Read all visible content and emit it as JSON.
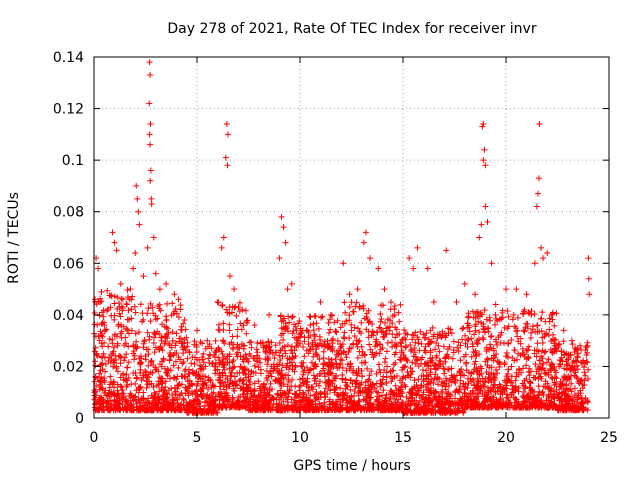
{
  "chart_data": {
    "type": "scatter",
    "title": "Day 278 of 2021, Rate Of TEC Index for receiver invr",
    "xlabel": "GPS time / hours",
    "ylabel": "ROTI / TECUs",
    "xlim": [
      0,
      25
    ],
    "ylim": [
      0,
      0.14
    ],
    "xticks": [
      0,
      5,
      10,
      15,
      20,
      25
    ],
    "xtick_labels": [
      "0",
      "5",
      "10",
      "15",
      "20",
      "25"
    ],
    "yticks": [
      0,
      0.02,
      0.04,
      0.06,
      0.08,
      0.1,
      0.12,
      0.14
    ],
    "ytick_labels": [
      "0",
      "0.02",
      "0.04",
      "0.06",
      "0.08",
      "0.1",
      "0.12",
      "0.14"
    ],
    "grid": true,
    "marker": "+",
    "color": "#ff0000",
    "series": [
      {
        "name": "ROTI",
        "points": [
          [
            0.1,
            0.062
          ],
          [
            0.2,
            0.058
          ],
          [
            0.3,
            0.045
          ],
          [
            0.5,
            0.036
          ],
          [
            0.9,
            0.072
          ],
          [
            1.0,
            0.068
          ],
          [
            1.1,
            0.065
          ],
          [
            1.3,
            0.052
          ],
          [
            1.6,
            0.044
          ],
          [
            1.9,
            0.058
          ],
          [
            2.0,
            0.064
          ],
          [
            2.05,
            0.09
          ],
          [
            2.1,
            0.085
          ],
          [
            2.15,
            0.08
          ],
          [
            2.2,
            0.075
          ],
          [
            2.4,
            0.055
          ],
          [
            2.6,
            0.066
          ],
          [
            2.7,
            0.138
          ],
          [
            2.72,
            0.133
          ],
          [
            2.68,
            0.122
          ],
          [
            2.74,
            0.114
          ],
          [
            2.7,
            0.11
          ],
          [
            2.72,
            0.106
          ],
          [
            2.76,
            0.096
          ],
          [
            2.73,
            0.092
          ],
          [
            2.78,
            0.085
          ],
          [
            2.8,
            0.083
          ],
          [
            2.9,
            0.07
          ],
          [
            3.0,
            0.056
          ],
          [
            3.2,
            0.05
          ],
          [
            3.5,
            0.052
          ],
          [
            3.9,
            0.048
          ],
          [
            4.1,
            0.046
          ],
          [
            4.4,
            0.038
          ],
          [
            5.0,
            0.034
          ],
          [
            5.5,
            0.03
          ],
          [
            6.0,
            0.045
          ],
          [
            6.2,
            0.066
          ],
          [
            6.3,
            0.07
          ],
          [
            6.45,
            0.114
          ],
          [
            6.5,
            0.11
          ],
          [
            6.4,
            0.101
          ],
          [
            6.48,
            0.098
          ],
          [
            6.6,
            0.055
          ],
          [
            6.8,
            0.05
          ],
          [
            7.2,
            0.042
          ],
          [
            7.8,
            0.036
          ],
          [
            8.5,
            0.04
          ],
          [
            9.0,
            0.062
          ],
          [
            9.1,
            0.078
          ],
          [
            9.2,
            0.074
          ],
          [
            9.3,
            0.068
          ],
          [
            9.4,
            0.05
          ],
          [
            9.6,
            0.052
          ],
          [
            9.9,
            0.03
          ],
          [
            10.5,
            0.036
          ],
          [
            11.0,
            0.045
          ],
          [
            11.5,
            0.04
          ],
          [
            12.1,
            0.06
          ],
          [
            12.4,
            0.048
          ],
          [
            12.8,
            0.05
          ],
          [
            13.1,
            0.068
          ],
          [
            13.2,
            0.072
          ],
          [
            13.4,
            0.062
          ],
          [
            13.8,
            0.058
          ],
          [
            14.1,
            0.05
          ],
          [
            14.6,
            0.04
          ],
          [
            15.3,
            0.062
          ],
          [
            15.5,
            0.058
          ],
          [
            15.7,
            0.066
          ],
          [
            16.2,
            0.058
          ],
          [
            16.5,
            0.045
          ],
          [
            16.8,
            0.032
          ],
          [
            17.1,
            0.065
          ],
          [
            17.6,
            0.045
          ],
          [
            18.0,
            0.052
          ],
          [
            18.5,
            0.048
          ],
          [
            18.7,
            0.07
          ],
          [
            18.8,
            0.075
          ],
          [
            18.9,
            0.114
          ],
          [
            18.85,
            0.113
          ],
          [
            18.95,
            0.104
          ],
          [
            18.9,
            0.1
          ],
          [
            19.0,
            0.098
          ],
          [
            19.0,
            0.082
          ],
          [
            19.1,
            0.076
          ],
          [
            19.3,
            0.06
          ],
          [
            19.5,
            0.044
          ],
          [
            20.0,
            0.05
          ],
          [
            20.5,
            0.05
          ],
          [
            21.0,
            0.048
          ],
          [
            21.4,
            0.06
          ],
          [
            21.5,
            0.082
          ],
          [
            21.55,
            0.087
          ],
          [
            21.6,
            0.093
          ],
          [
            21.62,
            0.114
          ],
          [
            21.7,
            0.066
          ],
          [
            21.8,
            0.062
          ],
          [
            22.0,
            0.064
          ],
          [
            22.2,
            0.04
          ],
          [
            22.8,
            0.034
          ],
          [
            23.2,
            0.03
          ],
          [
            23.6,
            0.028
          ],
          [
            24.0,
            0.062
          ],
          [
            24.02,
            0.054
          ],
          [
            24.04,
            0.048
          ]
        ],
        "dense_band": [
          {
            "x_from": 0.0,
            "x_to": 2.0,
            "y_min": 0.003,
            "y_max": 0.05
          },
          {
            "x_from": 2.0,
            "x_to": 4.5,
            "y_min": 0.003,
            "y_max": 0.045
          },
          {
            "x_from": 4.5,
            "x_to": 6.0,
            "y_min": 0.002,
            "y_max": 0.03
          },
          {
            "x_from": 6.0,
            "x_to": 7.5,
            "y_min": 0.004,
            "y_max": 0.045
          },
          {
            "x_from": 7.5,
            "x_to": 9.0,
            "y_min": 0.003,
            "y_max": 0.03
          },
          {
            "x_from": 9.0,
            "x_to": 12.0,
            "y_min": 0.003,
            "y_max": 0.04
          },
          {
            "x_from": 12.0,
            "x_to": 15.0,
            "y_min": 0.003,
            "y_max": 0.045
          },
          {
            "x_from": 15.0,
            "x_to": 18.0,
            "y_min": 0.002,
            "y_max": 0.035
          },
          {
            "x_from": 18.0,
            "x_to": 22.5,
            "y_min": 0.004,
            "y_max": 0.042
          },
          {
            "x_from": 22.5,
            "x_to": 24.0,
            "y_min": 0.003,
            "y_max": 0.03
          }
        ]
      }
    ]
  }
}
